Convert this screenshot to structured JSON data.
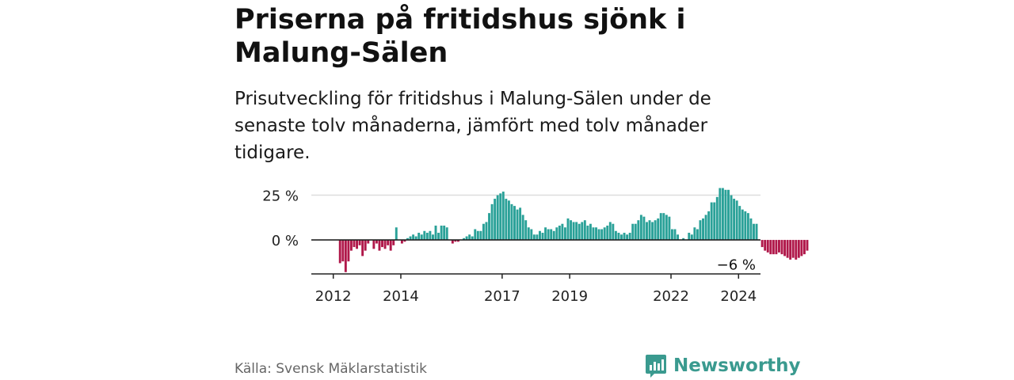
{
  "title": "Priserna på fritidshus sjönk i Malung-Sälen",
  "subtitle": "Prisutveckling för fritidshus i Malung-Sälen under de senaste tolv månaderna, jämfört med tolv månader tidigare.",
  "source": "Källa: Svensk Mäklarstatistik",
  "brand": {
    "name": "Newsworthy",
    "icon": "newsworthy-logo-icon"
  },
  "colors": {
    "positive": "#2aa198",
    "negative": "#b0184a",
    "grid": "#dddddd",
    "axis": "#222222",
    "brand": "#3a9a8f"
  },
  "chart_data": {
    "type": "bar",
    "title": "",
    "xlabel": "",
    "ylabel": "",
    "ylim": [
      -19,
      31
    ],
    "grid": true,
    "legend": "none",
    "y_ticks": [
      {
        "value": 0,
        "label": "0 %"
      },
      {
        "value": 25,
        "label": "25 %"
      }
    ],
    "x_ticks": [
      {
        "value": 2012,
        "label": "2012"
      },
      {
        "value": 2014,
        "label": "2014"
      },
      {
        "value": 2017,
        "label": "2017"
      },
      {
        "value": 2019,
        "label": "2019"
      },
      {
        "value": 2022,
        "label": "2022"
      },
      {
        "value": 2024,
        "label": "2024"
      }
    ],
    "x_start": 2012.2,
    "x_step_months": 1,
    "annotation": {
      "label": "−6 %",
      "value": -6
    },
    "values": [
      -13,
      -12,
      -18,
      -12,
      -6,
      -4,
      -5,
      -3,
      -9,
      -6,
      -2,
      0,
      -5,
      -2,
      -6,
      -4,
      -5,
      -3,
      -6,
      -3,
      7,
      0,
      -2,
      -1,
      1,
      2,
      3,
      2,
      4,
      3,
      5,
      4,
      5,
      3,
      8,
      4,
      8,
      8,
      7,
      0,
      -2,
      -1,
      -1,
      0,
      1,
      2,
      3,
      2,
      6,
      5,
      5,
      9,
      10,
      15,
      20,
      23,
      25,
      26,
      27,
      23,
      22,
      20,
      19,
      17,
      18,
      14,
      11,
      7,
      6,
      3,
      3,
      5,
      4,
      7,
      6,
      6,
      5,
      7,
      8,
      9,
      7,
      12,
      11,
      10,
      10,
      9,
      10,
      11,
      8,
      9,
      7,
      7,
      6,
      6,
      7,
      8,
      10,
      9,
      5,
      4,
      3,
      4,
      3,
      4,
      9,
      9,
      11,
      14,
      13,
      10,
      11,
      10,
      11,
      12,
      15,
      15,
      14,
      13,
      6,
      6,
      3,
      0,
      1,
      0,
      4,
      3,
      7,
      6,
      11,
      12,
      14,
      16,
      21,
      21,
      24,
      29,
      29,
      28,
      28,
      25,
      23,
      22,
      19,
      17,
      16,
      15,
      12,
      9,
      9,
      0,
      -4,
      -6,
      -7,
      -8,
      -8,
      -8,
      -7,
      -8,
      -9,
      -10,
      -11,
      -10,
      -11,
      -10,
      -9,
      -8,
      -6
    ]
  }
}
